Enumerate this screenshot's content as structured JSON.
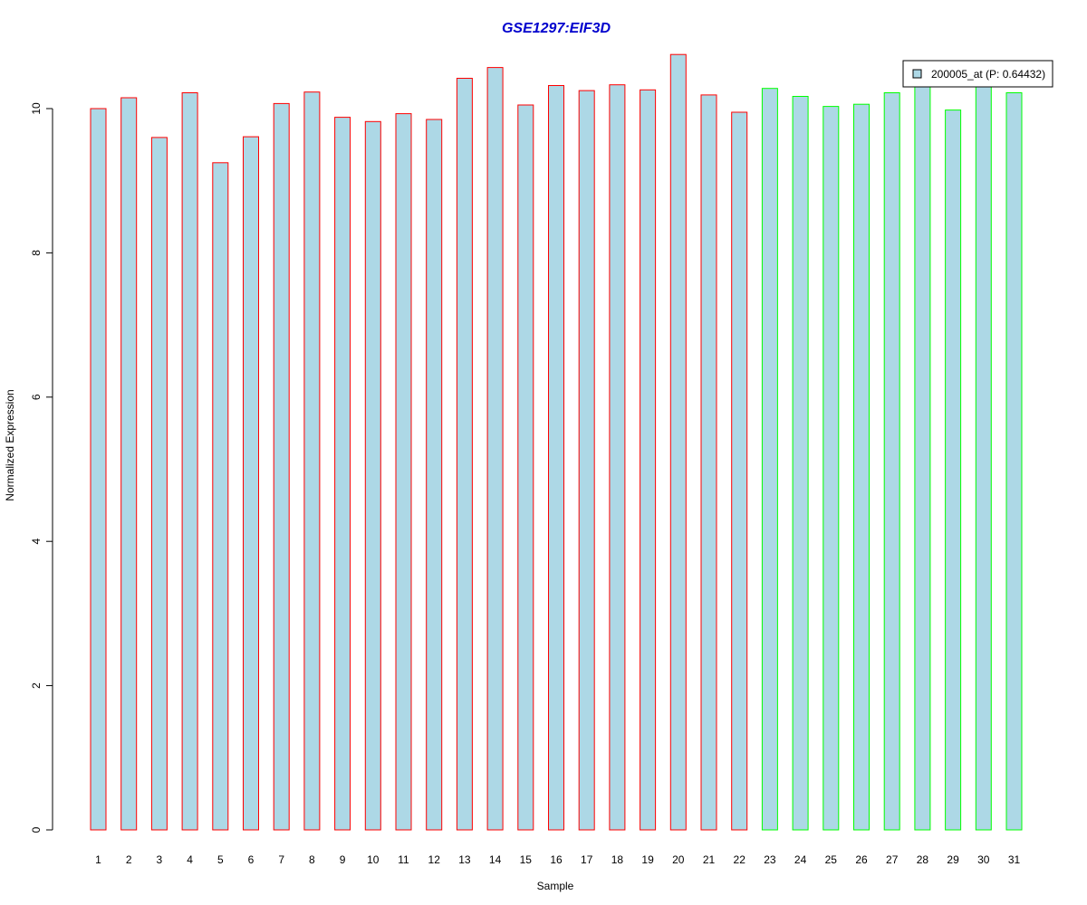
{
  "chart_data": {
    "type": "bar",
    "title": "GSE1297:EIF3D",
    "xlabel": "Sample",
    "ylabel": "Normalized Expression",
    "ylim": [
      0,
      10.8
    ],
    "yticks": [
      "0",
      "2",
      "4",
      "6",
      "8",
      "10"
    ],
    "categories": [
      "1",
      "2",
      "3",
      "4",
      "5",
      "6",
      "7",
      "8",
      "9",
      "10",
      "11",
      "12",
      "13",
      "14",
      "15",
      "16",
      "17",
      "18",
      "19",
      "20",
      "21",
      "22",
      "23",
      "24",
      "25",
      "26",
      "27",
      "28",
      "29",
      "30",
      "31"
    ],
    "series": [
      {
        "name": "200005_at (P: 0.64432)",
        "values": [
          10.0,
          10.15,
          9.6,
          10.22,
          9.25,
          9.61,
          10.07,
          10.23,
          9.88,
          9.82,
          9.93,
          9.85,
          10.42,
          10.57,
          10.05,
          10.32,
          10.25,
          10.33,
          10.26,
          10.75,
          10.19,
          9.95,
          10.28,
          10.17,
          10.03,
          10.06,
          10.22,
          10.34,
          9.98,
          10.34,
          10.22
        ]
      }
    ],
    "groups": [
      "red",
      "red",
      "red",
      "red",
      "red",
      "red",
      "red",
      "red",
      "red",
      "red",
      "red",
      "red",
      "red",
      "red",
      "red",
      "red",
      "red",
      "red",
      "red",
      "red",
      "red",
      "red",
      "green",
      "green",
      "green",
      "green",
      "green",
      "green",
      "green",
      "green",
      "green"
    ],
    "grid": false,
    "legend_position": "top-right",
    "colors": {
      "fill": "#add8e6",
      "group_red": "#ff0000",
      "group_green": "#00ff00",
      "title": "#0000cd",
      "axis": "#000000"
    }
  }
}
